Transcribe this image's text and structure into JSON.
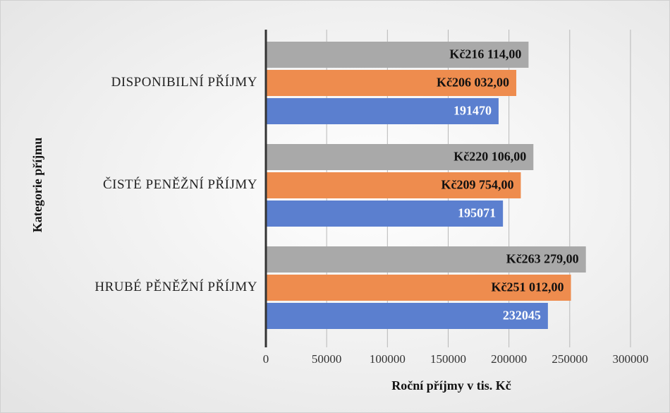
{
  "chart_data": {
    "type": "bar",
    "orientation": "horizontal",
    "x_label": "Roční příjmy v tis. Kč",
    "y_label": "Kategorie příjmu",
    "categories": [
      "DISPONIBILNÍ PŘÍJMY",
      "ČISTÉ PENĚŽNÍ PŘÍJMY",
      "HRUBÉ PĚNĚŽNÍ PŘÍJMY"
    ],
    "series": [
      {
        "color": "#5b7fcf",
        "values": [
          191470,
          195071,
          232045
        ]
      },
      {
        "color": "#ee8c4e",
        "values": [
          206032,
          209754,
          251012
        ],
        "value_labels": [
          "Kč206 032,00",
          "Kč209 754,00",
          "Kč251 012,00"
        ]
      },
      {
        "color": "#a9a9a9",
        "values": [
          216114,
          220106,
          263279
        ],
        "value_labels": [
          "Kč216 114,00",
          "Kč220 106,00",
          "Kč263 279,00"
        ]
      }
    ],
    "xlim": [
      0,
      318000
    ],
    "xticks": [
      0,
      50000,
      100000,
      150000,
      200000,
      250000,
      300000
    ],
    "grid": true
  }
}
